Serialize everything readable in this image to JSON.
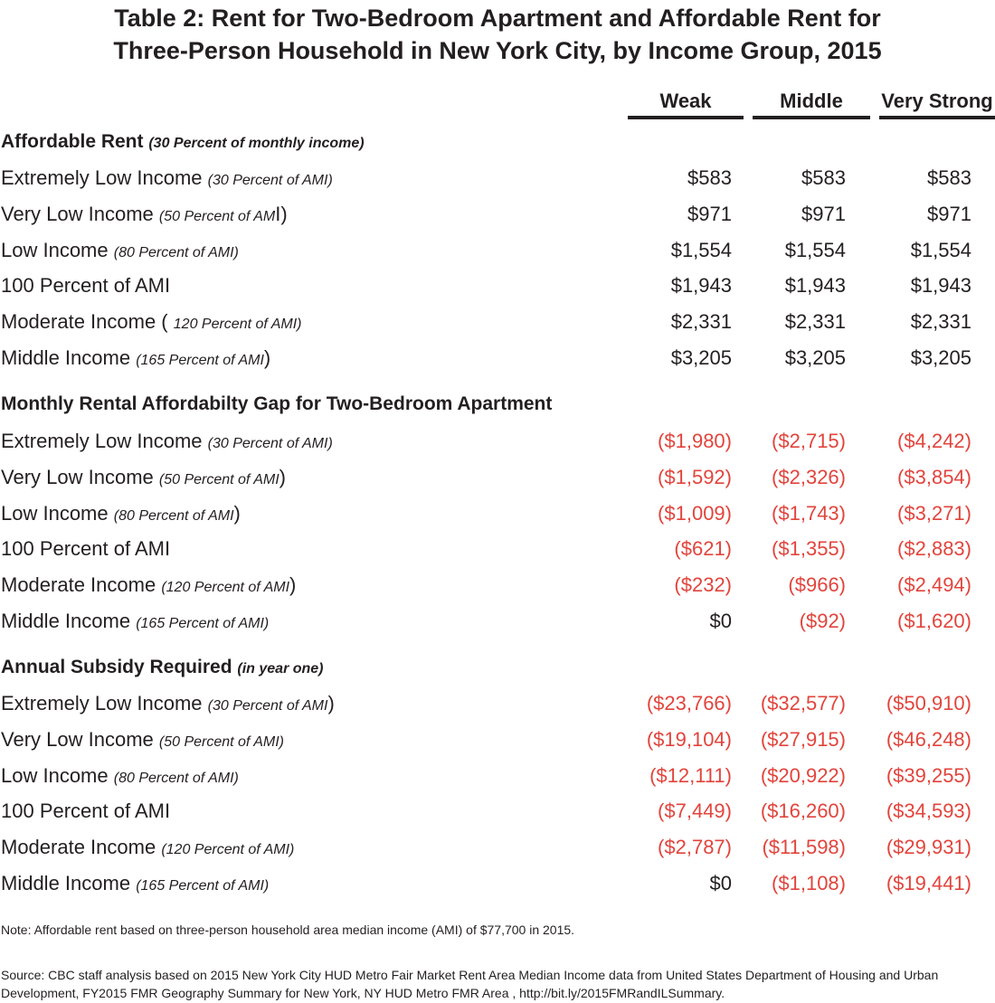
{
  "title": {
    "line1": "Table 2: Rent for Two-Bedroom Apartment and Affordable Rent for",
    "line2": "Three-Person Household in New York City, by Income Group, 2015"
  },
  "columns": [
    "Weak",
    "Middle",
    "Very Strong"
  ],
  "sections": [
    {
      "heading": "Affordable Rent",
      "heading_sub": "(30 Percent of monthly income)",
      "rows": [
        {
          "label": "Extremely Low Income",
          "sub": "(30 Percent of AMI)",
          "values": [
            "$583",
            "$583",
            "$583"
          ]
        },
        {
          "label": "Very Low Income",
          "sub": "(50 Percent of AM",
          "tail": "I)",
          "values": [
            "$971",
            "$971",
            "$971"
          ]
        },
        {
          "label": "Low Income",
          "sub": "(80 Percent of AMI)",
          "values": [
            "$1,554",
            "$1,554",
            "$1,554"
          ]
        },
        {
          "label": "100 Percent of AMI",
          "values": [
            "$1,943",
            "$1,943",
            "$1,943"
          ]
        },
        {
          "label": "Moderate Income (",
          "sub": "120 Percent of AMI)",
          "values": [
            "$2,331",
            "$2,331",
            "$2,331"
          ]
        },
        {
          "label": "Middle Income",
          "sub": "(165 Percent of AMI",
          "tail": ")",
          "values": [
            "$3,205",
            "$3,205",
            "$3,205"
          ]
        }
      ]
    },
    {
      "heading": "Monthly Rental Affordabilty Gap for Two-Bedroom Apartment",
      "heading_sub": "",
      "rows": [
        {
          "label": "Extremely Low Income",
          "sub": "(30 Percent of AMI)",
          "values": [
            "($1,980)",
            "($2,715)",
            "($4,242)"
          ]
        },
        {
          "label": "Very Low Income",
          "sub": "(50 Percent of AMI",
          "tail": ")",
          "values": [
            "($1,592)",
            "($2,326)",
            "($3,854)"
          ]
        },
        {
          "label": "Low Income",
          "sub": "(80 Percent of AMI",
          "tail": ")",
          "values": [
            "($1,009)",
            "($1,743)",
            "($3,271)"
          ]
        },
        {
          "label": "100 Percent of AMI",
          "values": [
            "($621)",
            "($1,355)",
            "($2,883)"
          ]
        },
        {
          "label": "Moderate Income",
          "sub": "(120 Percent of AMI",
          "tail": ")",
          "values": [
            "($232)",
            "($966)",
            "($2,494)"
          ]
        },
        {
          "label": "Middle Income",
          "sub": "(165 Percent of AMI)",
          "values": [
            "$0",
            "($92)",
            "($1,620)"
          ]
        }
      ]
    },
    {
      "heading": "Annual Subsidy Required",
      "heading_sub": "(in year one)",
      "rows": [
        {
          "label": "Extremely Low Income",
          "sub": "(30 Percent of AMI",
          "tail": ")",
          "values": [
            "($23,766)",
            "($32,577)",
            "($50,910)"
          ]
        },
        {
          "label": "Very Low Income",
          "sub": "(50 Percent of AMI)",
          "values": [
            "($19,104)",
            "($27,915)",
            "($46,248)"
          ]
        },
        {
          "label": "Low Income",
          "sub": "(80 Percent of AMI)",
          "values": [
            "($12,111)",
            "($20,922)",
            "($39,255)"
          ]
        },
        {
          "label": "100 Percent of AMI",
          "values": [
            "($7,449)",
            "($16,260)",
            "($34,593)"
          ]
        },
        {
          "label": "Moderate Income",
          "sub": "(120 Percent of AMI)",
          "values": [
            "($2,787)",
            "($11,598)",
            "($29,931)"
          ]
        },
        {
          "label": "Middle Income",
          "sub": "(165 Percent of AMI)",
          "values": [
            "$0",
            "($1,108)",
            "($19,441)"
          ]
        }
      ]
    }
  ],
  "note": "Note: Affordable rent based on three-person household area median income (AMI) of $77,700 in 2015.",
  "source": "Source: CBC staff analysis based on 2015 New York City HUD Metro Fair Market Rent Area Median Income data from United  States Department of Housing and Urban Development,  FY2015 FMR Geography Summary for New York, NY HUD Metro FMR Area , http://bit.ly/2015FMRandILSummary.",
  "colors": {
    "text": "#231f20",
    "negative": "#e2443c"
  }
}
